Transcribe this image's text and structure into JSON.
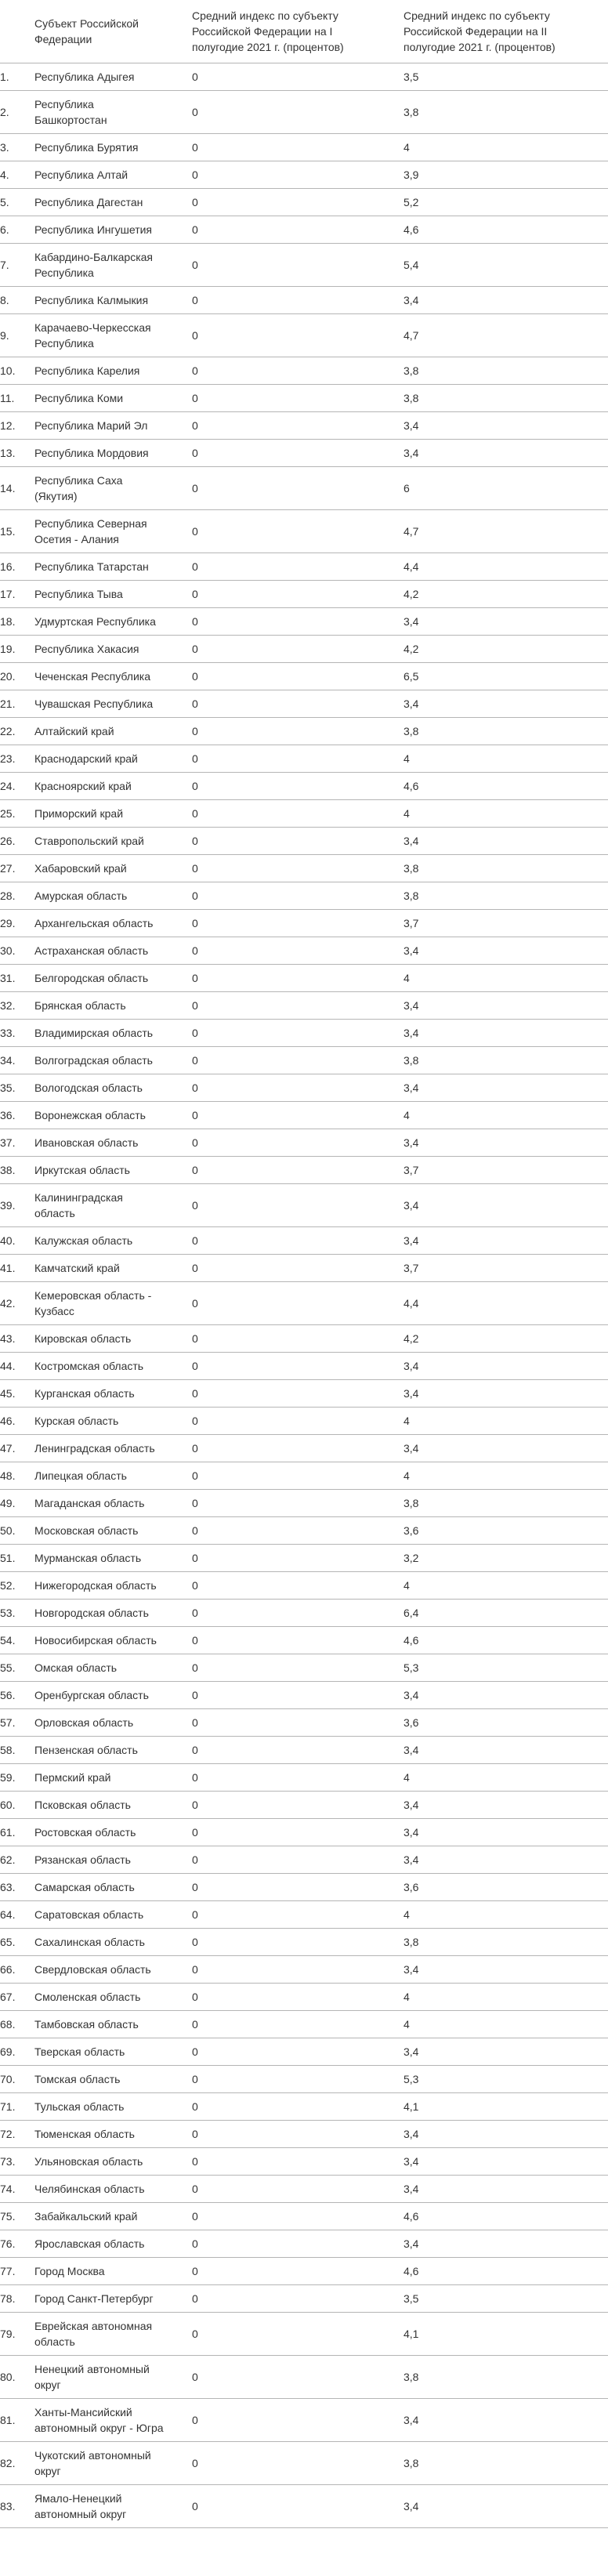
{
  "table": {
    "headers": {
      "number": "",
      "region": "Субъект Российской Федерации",
      "index_h1": "Средний индекс по субъекту Российской Федерации на I полугодие 2021 г. (процентов)",
      "index_h2": "Средний индекс по субъекту Российской Федерации на II полугодие 2021 г. (процентов)"
    },
    "rows": [
      {
        "num": "1.",
        "name": "Республика Адыгея",
        "h1": "0",
        "h2": "3,5"
      },
      {
        "num": "2.",
        "name": "Республика Башкортостан",
        "h1": "0",
        "h2": "3,8"
      },
      {
        "num": "3.",
        "name": "Республика Бурятия",
        "h1": "0",
        "h2": "4"
      },
      {
        "num": "4.",
        "name": "Республика Алтай",
        "h1": "0",
        "h2": "3,9"
      },
      {
        "num": "5.",
        "name": "Республика Дагестан",
        "h1": "0",
        "h2": "5,2"
      },
      {
        "num": "6.",
        "name": "Республика Ингушетия",
        "h1": "0",
        "h2": "4,6"
      },
      {
        "num": "7.",
        "name": "Кабардино-Балкарская Республика",
        "h1": "0",
        "h2": "5,4"
      },
      {
        "num": "8.",
        "name": "Республика Калмыкия",
        "h1": "0",
        "h2": "3,4"
      },
      {
        "num": "9.",
        "name": "Карачаево-Черкесская Республика",
        "h1": "0",
        "h2": "4,7"
      },
      {
        "num": "10.",
        "name": "Республика Карелия",
        "h1": "0",
        "h2": "3,8"
      },
      {
        "num": "11.",
        "name": "Республика Коми",
        "h1": "0",
        "h2": "3,8"
      },
      {
        "num": "12.",
        "name": "Республика Марий Эл",
        "h1": "0",
        "h2": "3,4"
      },
      {
        "num": "13.",
        "name": "Республика Мордовия",
        "h1": "0",
        "h2": "3,4"
      },
      {
        "num": "14.",
        "name": "Республика Саха (Якутия)",
        "h1": "0",
        "h2": "6"
      },
      {
        "num": "15.",
        "name": "Республика Северная Осетия - Алания",
        "h1": "0",
        "h2": "4,7"
      },
      {
        "num": "16.",
        "name": "Республика Татарстан",
        "h1": "0",
        "h2": "4,4"
      },
      {
        "num": "17.",
        "name": "Республика Тыва",
        "h1": "0",
        "h2": "4,2"
      },
      {
        "num": "18.",
        "name": "Удмуртская Республика",
        "h1": "0",
        "h2": "3,4"
      },
      {
        "num": "19.",
        "name": "Республика Хакасия",
        "h1": "0",
        "h2": "4,2"
      },
      {
        "num": "20.",
        "name": "Чеченская Республика",
        "h1": "0",
        "h2": "6,5"
      },
      {
        "num": "21.",
        "name": "Чувашская Республика",
        "h1": "0",
        "h2": "3,4"
      },
      {
        "num": "22.",
        "name": "Алтайский край",
        "h1": "0",
        "h2": "3,8"
      },
      {
        "num": "23.",
        "name": "Краснодарский край",
        "h1": "0",
        "h2": "4"
      },
      {
        "num": "24.",
        "name": "Красноярский край",
        "h1": "0",
        "h2": "4,6"
      },
      {
        "num": "25.",
        "name": "Приморский край",
        "h1": "0",
        "h2": "4"
      },
      {
        "num": "26.",
        "name": "Ставропольский край",
        "h1": "0",
        "h2": "3,4"
      },
      {
        "num": "27.",
        "name": "Хабаровский край",
        "h1": "0",
        "h2": "3,8"
      },
      {
        "num": "28.",
        "name": "Амурская область",
        "h1": "0",
        "h2": "3,8"
      },
      {
        "num": "29.",
        "name": "Архангельская область",
        "h1": "0",
        "h2": "3,7"
      },
      {
        "num": "30.",
        "name": "Астраханская область",
        "h1": "0",
        "h2": "3,4"
      },
      {
        "num": "31.",
        "name": "Белгородская область",
        "h1": "0",
        "h2": "4"
      },
      {
        "num": "32.",
        "name": "Брянская область",
        "h1": "0",
        "h2": "3,4"
      },
      {
        "num": "33.",
        "name": "Владимирская область",
        "h1": "0",
        "h2": "3,4"
      },
      {
        "num": "34.",
        "name": "Волгоградская область",
        "h1": "0",
        "h2": "3,8"
      },
      {
        "num": "35.",
        "name": "Вологодская область",
        "h1": "0",
        "h2": "3,4"
      },
      {
        "num": "36.",
        "name": "Воронежская область",
        "h1": "0",
        "h2": "4"
      },
      {
        "num": "37.",
        "name": "Ивановская область",
        "h1": "0",
        "h2": "3,4"
      },
      {
        "num": "38.",
        "name": "Иркутская область",
        "h1": "0",
        "h2": "3,7"
      },
      {
        "num": "39.",
        "name": "Калининградская область",
        "h1": "0",
        "h2": "3,4"
      },
      {
        "num": "40.",
        "name": "Калужская область",
        "h1": "0",
        "h2": "3,4"
      },
      {
        "num": "41.",
        "name": "Камчатский край",
        "h1": "0",
        "h2": "3,7"
      },
      {
        "num": "42.",
        "name": "Кемеровская область - Кузбасс",
        "h1": "0",
        "h2": "4,4"
      },
      {
        "num": "43.",
        "name": "Кировская область",
        "h1": "0",
        "h2": "4,2"
      },
      {
        "num": "44.",
        "name": "Костромская область",
        "h1": "0",
        "h2": "3,4"
      },
      {
        "num": "45.",
        "name": "Курганская область",
        "h1": "0",
        "h2": "3,4"
      },
      {
        "num": "46.",
        "name": "Курская область",
        "h1": "0",
        "h2": "4"
      },
      {
        "num": "47.",
        "name": "Ленинградская область",
        "h1": "0",
        "h2": "3,4"
      },
      {
        "num": "48.",
        "name": "Липецкая область",
        "h1": "0",
        "h2": "4"
      },
      {
        "num": "49.",
        "name": "Магаданская область",
        "h1": "0",
        "h2": "3,8"
      },
      {
        "num": "50.",
        "name": "Московская область",
        "h1": "0",
        "h2": "3,6"
      },
      {
        "num": "51.",
        "name": "Мурманская область",
        "h1": "0",
        "h2": "3,2"
      },
      {
        "num": "52.",
        "name": "Нижегородская область",
        "h1": "0",
        "h2": "4"
      },
      {
        "num": "53.",
        "name": "Новгородская область",
        "h1": "0",
        "h2": "6,4"
      },
      {
        "num": "54.",
        "name": "Новосибирская область",
        "h1": "0",
        "h2": "4,6"
      },
      {
        "num": "55.",
        "name": "Омская область",
        "h1": "0",
        "h2": "5,3"
      },
      {
        "num": "56.",
        "name": "Оренбургская область",
        "h1": "0",
        "h2": "3,4"
      },
      {
        "num": "57.",
        "name": "Орловская область",
        "h1": "0",
        "h2": "3,6"
      },
      {
        "num": "58.",
        "name": "Пензенская область",
        "h1": "0",
        "h2": "3,4"
      },
      {
        "num": "59.",
        "name": "Пермский край",
        "h1": "0",
        "h2": "4"
      },
      {
        "num": "60.",
        "name": "Псковская область",
        "h1": "0",
        "h2": "3,4"
      },
      {
        "num": "61.",
        "name": "Ростовская область",
        "h1": "0",
        "h2": "3,4"
      },
      {
        "num": "62.",
        "name": "Рязанская область",
        "h1": "0",
        "h2": "3,4"
      },
      {
        "num": "63.",
        "name": "Самарская область",
        "h1": "0",
        "h2": "3,6"
      },
      {
        "num": "64.",
        "name": "Саратовская область",
        "h1": "0",
        "h2": "4"
      },
      {
        "num": "65.",
        "name": "Сахалинская область",
        "h1": "0",
        "h2": "3,8"
      },
      {
        "num": "66.",
        "name": "Свердловская область",
        "h1": "0",
        "h2": "3,4"
      },
      {
        "num": "67.",
        "name": "Смоленская область",
        "h1": "0",
        "h2": "4"
      },
      {
        "num": "68.",
        "name": "Тамбовская область",
        "h1": "0",
        "h2": "4"
      },
      {
        "num": "69.",
        "name": "Тверская область",
        "h1": "0",
        "h2": "3,4"
      },
      {
        "num": "70.",
        "name": "Томская область",
        "h1": "0",
        "h2": "5,3"
      },
      {
        "num": "71.",
        "name": "Тульская область",
        "h1": "0",
        "h2": "4,1"
      },
      {
        "num": "72.",
        "name": "Тюменская область",
        "h1": "0",
        "h2": "3,4"
      },
      {
        "num": "73.",
        "name": "Ульяновская область",
        "h1": "0",
        "h2": "3,4"
      },
      {
        "num": "74.",
        "name": "Челябинская область",
        "h1": "0",
        "h2": "3,4"
      },
      {
        "num": "75.",
        "name": "Забайкальский край",
        "h1": "0",
        "h2": "4,6"
      },
      {
        "num": "76.",
        "name": "Ярославская область",
        "h1": "0",
        "h2": "3,4"
      },
      {
        "num": "77.",
        "name": "Город Москва",
        "h1": "0",
        "h2": "4,6"
      },
      {
        "num": "78.",
        "name": "Город Санкт-Петербург",
        "h1": "0",
        "h2": "3,5"
      },
      {
        "num": "79.",
        "name": "Еврейская автономная область",
        "h1": "0",
        "h2": "4,1"
      },
      {
        "num": "80.",
        "name": "Ненецкий автономный округ",
        "h1": "0",
        "h2": "3,8"
      },
      {
        "num": "81.",
        "name": "Ханты-Мансийский автономный округ - Югра",
        "h1": "0",
        "h2": "3,4"
      },
      {
        "num": "82.",
        "name": "Чукотский автономный округ",
        "h1": "0",
        "h2": "3,8"
      },
      {
        "num": "83.",
        "name": "Ямало-Ненецкий автономный округ",
        "h1": "0",
        "h2": "3,4"
      }
    ]
  }
}
